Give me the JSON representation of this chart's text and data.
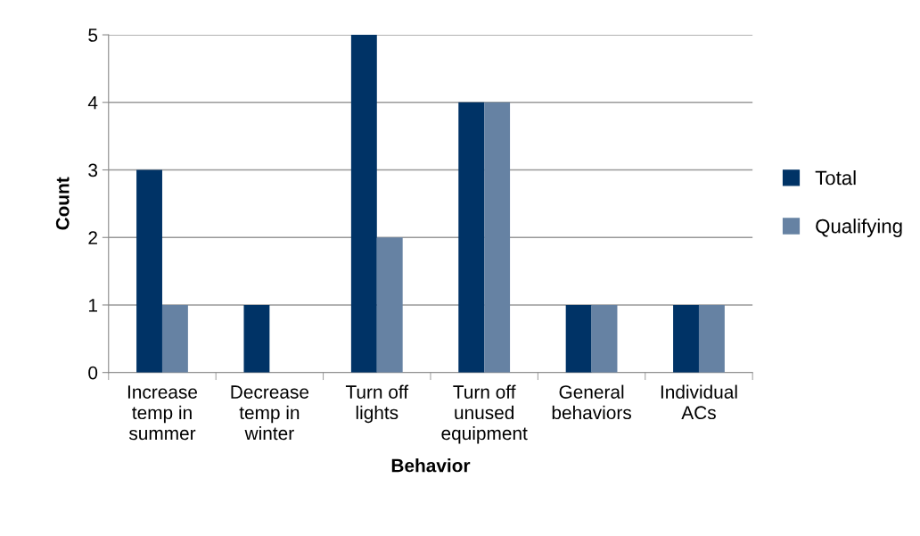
{
  "chart_data": {
    "type": "bar",
    "xlabel": "Behavior",
    "ylabel": "Count",
    "categories": [
      "Increase\ntemp in\nsummer",
      "Decrease\ntemp in\nwinter",
      "Turn off\nlights",
      "Turn off\nunused\nequipment",
      "General\nbehaviors",
      "Individual\nACs"
    ],
    "series": [
      {
        "name": "Total",
        "color": "#003366",
        "values": [
          3,
          1,
          5,
          4,
          1,
          1
        ]
      },
      {
        "name": "Qualifying",
        "color": "#6682a3",
        "values": [
          1,
          0,
          2,
          4,
          1,
          1
        ]
      }
    ],
    "ylim": [
      0,
      5
    ],
    "yticks": [
      0,
      1,
      2,
      3,
      4,
      5
    ],
    "grid": "y",
    "legend": "right"
  }
}
